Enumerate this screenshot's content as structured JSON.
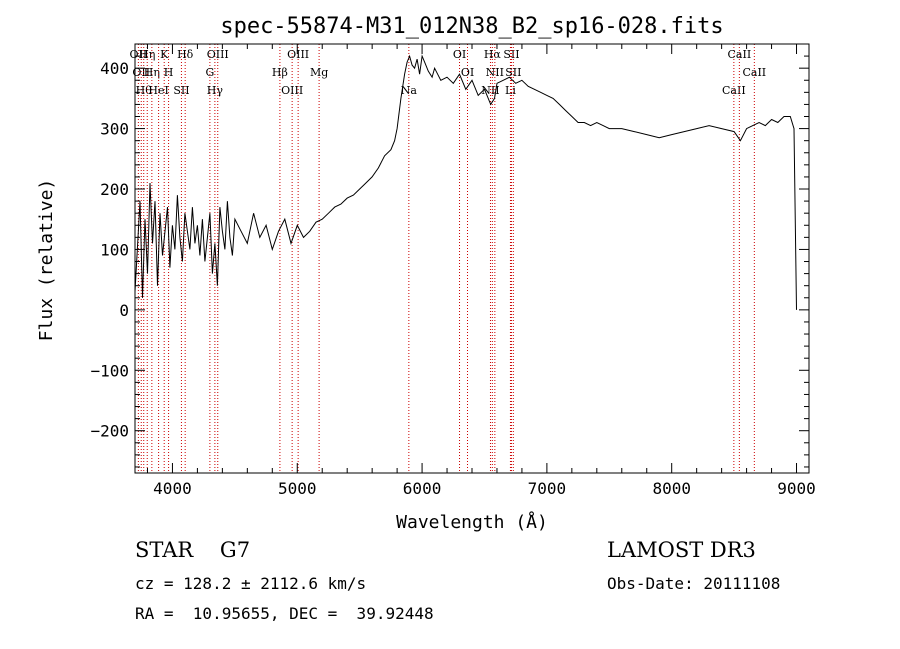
{
  "chart_data": {
    "type": "line",
    "title": "spec-55874-M31_012N38_B2_sp16-028.fits",
    "xlabel": "Wavelength (Å)",
    "ylabel": "Flux (relative)",
    "xlim": [
      3700,
      9100
    ],
    "ylim": [
      -270,
      440
    ],
    "xticks": [
      4000,
      5000,
      6000,
      7000,
      8000,
      9000
    ],
    "yticks": [
      -200,
      -100,
      0,
      100,
      200,
      300,
      400
    ],
    "grid": false,
    "line_color": "#000000",
    "marker_color": "#cc0000",
    "spectrum": {
      "x": [
        3700,
        3740,
        3760,
        3780,
        3800,
        3820,
        3840,
        3860,
        3880,
        3900,
        3920,
        3940,
        3960,
        3980,
        4000,
        4020,
        4040,
        4060,
        4080,
        4100,
        4120,
        4140,
        4160,
        4180,
        4200,
        4220,
        4240,
        4260,
        4280,
        4300,
        4320,
        4340,
        4360,
        4380,
        4400,
        4420,
        4440,
        4460,
        4480,
        4500,
        4550,
        4600,
        4650,
        4700,
        4750,
        4800,
        4850,
        4900,
        4950,
        5000,
        5050,
        5100,
        5150,
        5200,
        5250,
        5300,
        5350,
        5400,
        5450,
        5500,
        5550,
        5600,
        5650,
        5700,
        5750,
        5780,
        5800,
        5830,
        5860,
        5880,
        5900,
        5920,
        5940,
        5960,
        5980,
        6000,
        6020,
        6050,
        6080,
        6100,
        6150,
        6200,
        6250,
        6300,
        6350,
        6400,
        6450,
        6500,
        6550,
        6580,
        6600,
        6650,
        6700,
        6750,
        6800,
        6850,
        6900,
        6950,
        7000,
        7050,
        7100,
        7150,
        7200,
        7250,
        7300,
        7350,
        7400,
        7450,
        7500,
        7600,
        7700,
        7800,
        7900,
        8000,
        8100,
        8200,
        8300,
        8400,
        8500,
        8550,
        8600,
        8650,
        8700,
        8750,
        8800,
        8850,
        8900,
        8950,
        8980,
        9000
      ],
      "y": [
        30,
        180,
        20,
        150,
        60,
        210,
        110,
        180,
        40,
        160,
        90,
        130,
        170,
        70,
        140,
        100,
        190,
        120,
        80,
        160,
        130,
        100,
        170,
        110,
        140,
        90,
        150,
        80,
        120,
        160,
        60,
        110,
        40,
        170,
        130,
        100,
        180,
        120,
        90,
        150,
        130,
        110,
        160,
        120,
        140,
        100,
        130,
        150,
        110,
        140,
        120,
        130,
        145,
        150,
        160,
        170,
        175,
        185,
        190,
        200,
        210,
        220,
        235,
        255,
        265,
        280,
        300,
        350,
        390,
        410,
        420,
        405,
        400,
        415,
        390,
        420,
        410,
        395,
        385,
        400,
        380,
        385,
        375,
        390,
        365,
        380,
        355,
        365,
        340,
        350,
        375,
        380,
        385,
        375,
        380,
        370,
        365,
        360,
        355,
        350,
        340,
        330,
        320,
        310,
        310,
        305,
        310,
        305,
        300,
        300,
        295,
        290,
        285,
        290,
        295,
        300,
        305,
        300,
        295,
        280,
        300,
        305,
        310,
        305,
        315,
        310,
        320,
        320,
        300,
        0
      ]
    },
    "line_markers": [
      {
        "x": 3727,
        "label": "OII"
      },
      {
        "x": 3750,
        "label": "OII"
      },
      {
        "x": 3770,
        "label": "Hθ"
      },
      {
        "x": 3798,
        "label": "Hη"
      },
      {
        "x": 3835,
        "label": "Hη"
      },
      {
        "x": 3889,
        "label": "HeI"
      },
      {
        "x": 3934,
        "label": "K"
      },
      {
        "x": 3969,
        "label": "H"
      },
      {
        "x": 4072,
        "label": "SII"
      },
      {
        "x": 4102,
        "label": "Hδ"
      },
      {
        "x": 4300,
        "label": "G"
      },
      {
        "x": 4340,
        "label": "Hγ"
      },
      {
        "x": 4363,
        "label": "OIII"
      },
      {
        "x": 4861,
        "label": "Hβ"
      },
      {
        "x": 4959,
        "label": "OIII"
      },
      {
        "x": 5007,
        "label": "OIII"
      },
      {
        "x": 5175,
        "label": "Mg"
      },
      {
        "x": 5894,
        "label": "Na"
      },
      {
        "x": 6300,
        "label": "OI"
      },
      {
        "x": 6364,
        "label": "OI"
      },
      {
        "x": 6548,
        "label": "NII"
      },
      {
        "x": 6563,
        "label": "Hα"
      },
      {
        "x": 6583,
        "label": "NII"
      },
      {
        "x": 6708,
        "label": "Li"
      },
      {
        "x": 6716,
        "label": "SII"
      },
      {
        "x": 6731,
        "label": "SII"
      },
      {
        "x": 8498,
        "label": "CaII"
      },
      {
        "x": 8542,
        "label": "CaII"
      },
      {
        "x": 8662,
        "label": "CaII"
      }
    ]
  },
  "info": {
    "class_line": "STAR    G7",
    "survey": "LAMOST DR3",
    "cz": "cz = 128.2 ± 2112.6 km/s",
    "obs_date": "Obs-Date: 20111108",
    "radec": "RA =  10.95655, DEC =  39.92448"
  }
}
